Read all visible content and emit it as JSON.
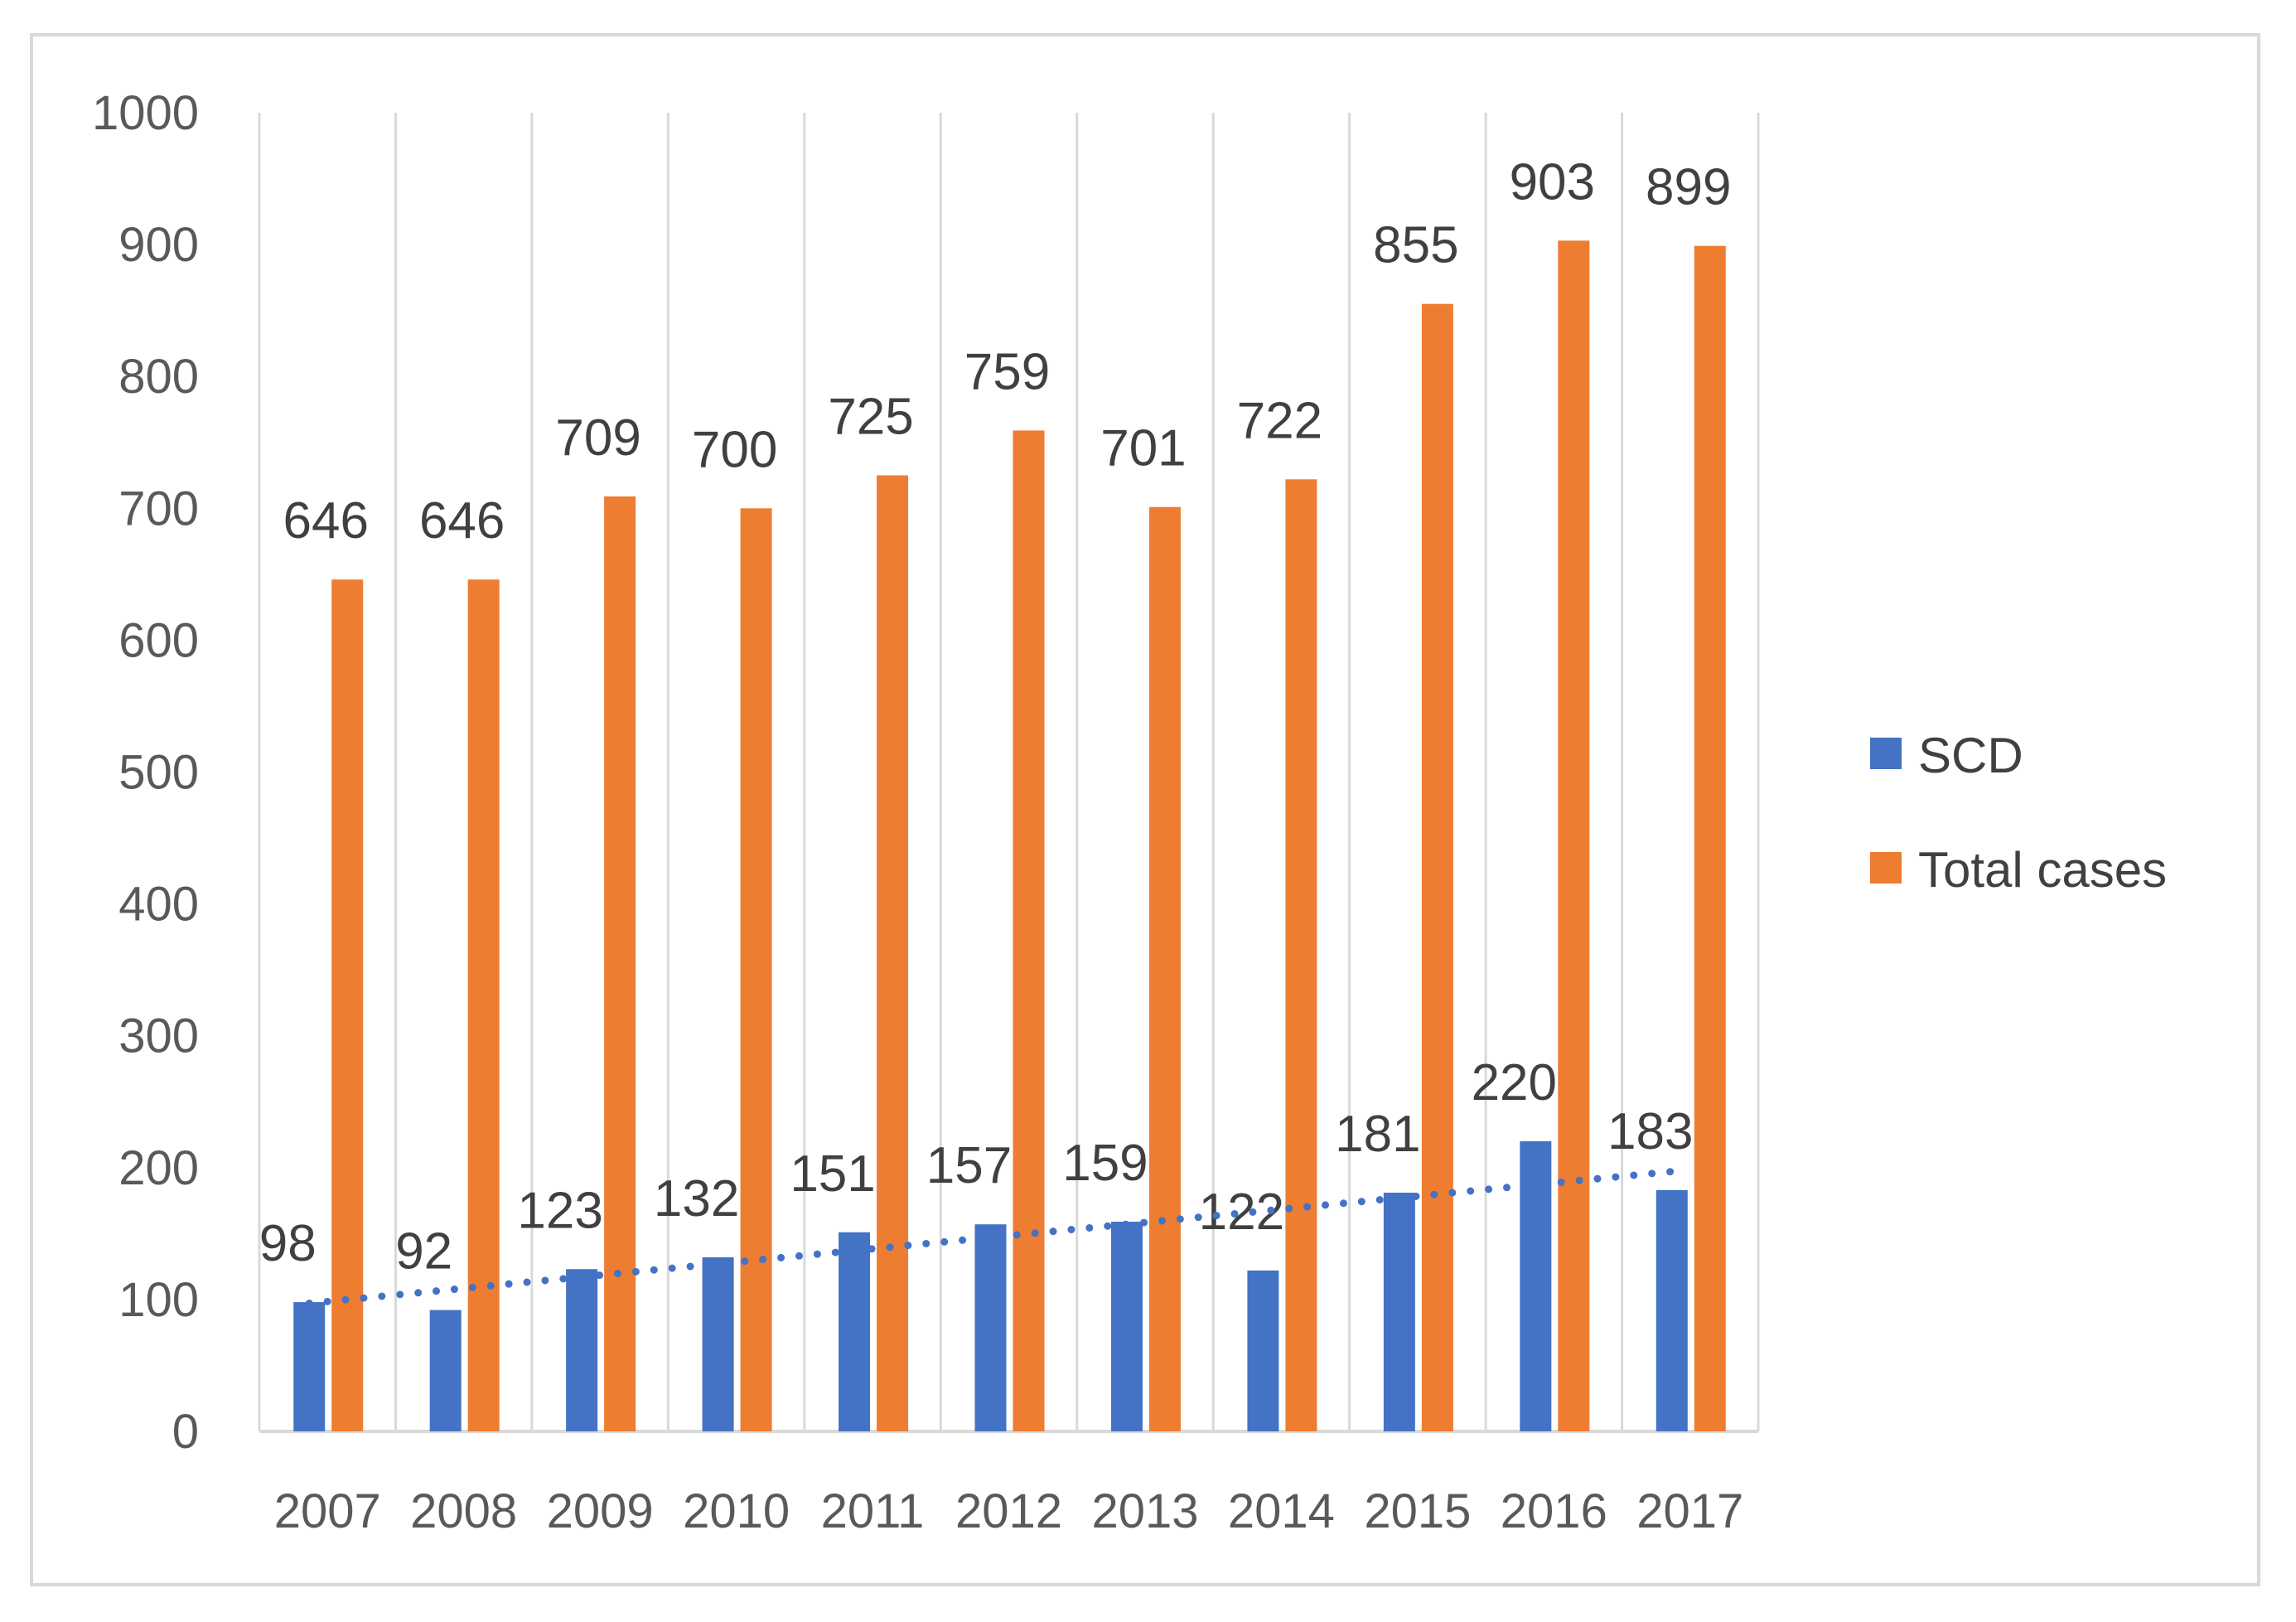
{
  "chart_data": {
    "type": "bar",
    "title": "",
    "xlabel": "",
    "ylabel": "",
    "categories": [
      "2007",
      "2008",
      "2009",
      "2010",
      "2011",
      "2012",
      "2013",
      "2014",
      "2015",
      "2016",
      "2017"
    ],
    "series": [
      {
        "name": "SCD",
        "color": "#4472c4",
        "values": [
          98,
          92,
          123,
          132,
          151,
          157,
          159,
          122,
          181,
          220,
          183
        ]
      },
      {
        "name": "Total cases",
        "color": "#ed7d31",
        "values": [
          646,
          646,
          709,
          700,
          725,
          759,
          701,
          722,
          855,
          903,
          899
        ]
      }
    ],
    "trendline": {
      "series": "SCD",
      "kind": "linear",
      "style": "dotted",
      "color": "#4472c4"
    },
    "ylim": [
      0,
      1000
    ],
    "yticks": [
      0,
      100,
      200,
      300,
      400,
      500,
      600,
      700,
      800,
      900,
      1000
    ],
    "grid": "vertical",
    "legend": "right"
  }
}
